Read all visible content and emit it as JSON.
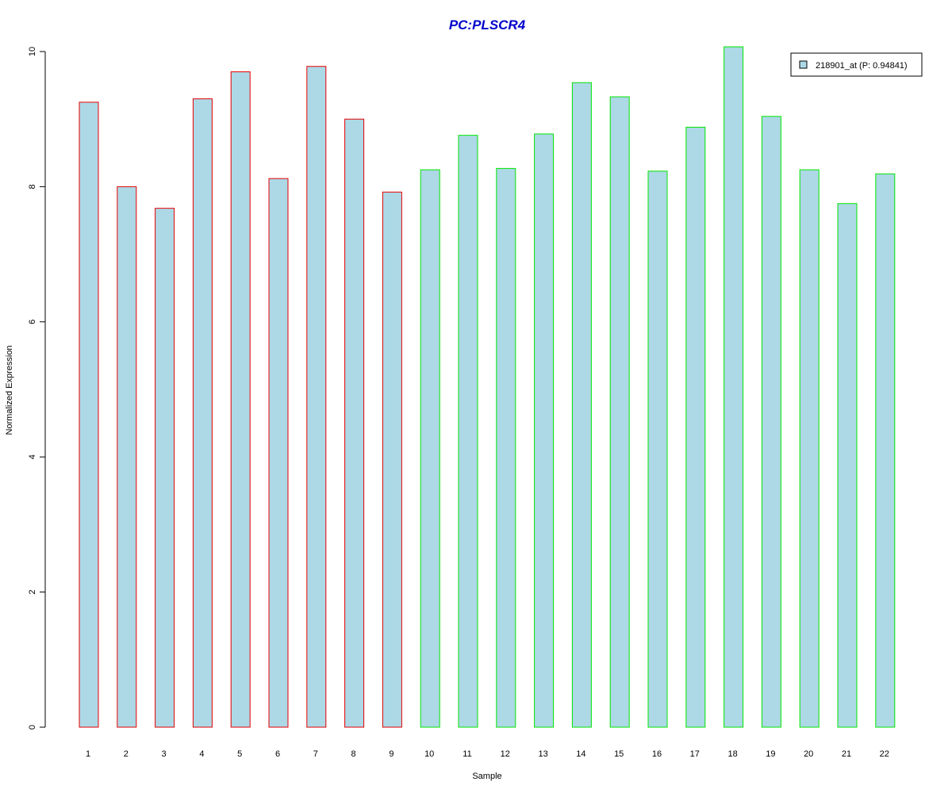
{
  "chart_data": {
    "type": "bar",
    "title": "PC:PLSCR4",
    "xlabel": "Sample",
    "ylabel": "Normalized Expression",
    "ylim": [
      0,
      10
    ],
    "yticks": [
      0,
      2,
      4,
      6,
      8,
      10
    ],
    "categories": [
      "1",
      "2",
      "3",
      "4",
      "5",
      "6",
      "7",
      "8",
      "9",
      "10",
      "11",
      "12",
      "13",
      "14",
      "15",
      "16",
      "17",
      "18",
      "19",
      "20",
      "21",
      "22"
    ],
    "series": [
      {
        "name": "218901_at (P: 0.94841)",
        "values": [
          9.25,
          8.0,
          7.68,
          9.3,
          9.7,
          8.12,
          9.78,
          9.0,
          7.92,
          8.25,
          8.76,
          8.27,
          8.78,
          9.54,
          9.33,
          8.23,
          8.88,
          10.07,
          9.04,
          8.25,
          7.75,
          8.19
        ]
      }
    ],
    "groups": [
      "red",
      "red",
      "red",
      "red",
      "red",
      "red",
      "red",
      "red",
      "red",
      "green",
      "green",
      "green",
      "green",
      "green",
      "green",
      "green",
      "green",
      "green",
      "green",
      "green",
      "green",
      "green"
    ],
    "grid": false,
    "legend_position": "top-right",
    "colors": {
      "title": "#0000cc",
      "bar_fill": "#add8e6",
      "red": "#e60000",
      "green": "#00e600",
      "axis": "#000000"
    }
  }
}
